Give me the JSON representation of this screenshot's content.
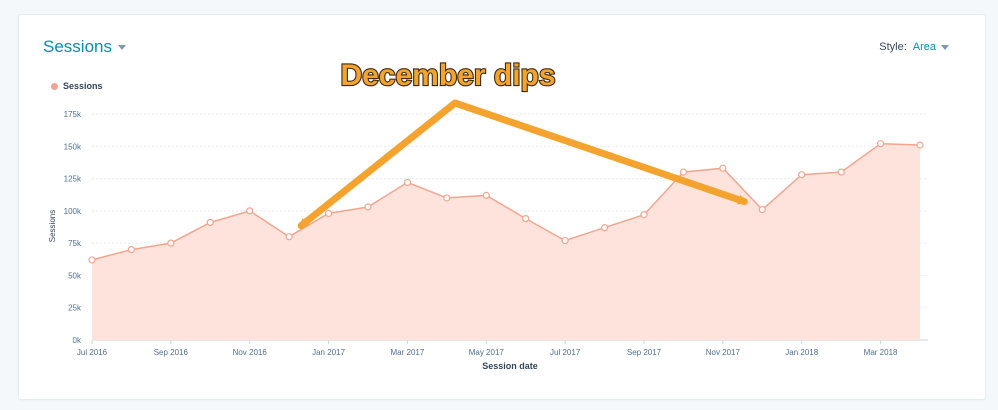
{
  "header": {
    "title": "Sessions",
    "style_label": "Style:",
    "style_value": "Area"
  },
  "annotation": {
    "text": "December dips"
  },
  "colors": {
    "area_fill": "#fde3db",
    "line": "#f2a58e",
    "accent": "#0091ae",
    "arrow": "#f5a32f"
  },
  "chart_data": {
    "type": "area",
    "xlabel": "Session date",
    "ylabel": "Sessions",
    "ylim": [
      0,
      175000
    ],
    "y_ticks": [
      0,
      25000,
      50000,
      75000,
      100000,
      125000,
      150000,
      175000
    ],
    "y_tick_labels": [
      "0k",
      "25k",
      "50k",
      "75k",
      "100k",
      "125k",
      "150k",
      "175k"
    ],
    "x_tick_labels": [
      "Jul 2016",
      "Sep 2016",
      "Nov 2016",
      "Jan 2017",
      "Mar 2017",
      "May 2017",
      "Jul 2017",
      "Sep 2017",
      "Nov 2017",
      "Jan 2018",
      "Mar 2018"
    ],
    "x": [
      "2016-07",
      "2016-08",
      "2016-09",
      "2016-10",
      "2016-11",
      "2016-12",
      "2017-01",
      "2017-02",
      "2017-03",
      "2017-04",
      "2017-05",
      "2017-06",
      "2017-07",
      "2017-08",
      "2017-09",
      "2017-10",
      "2017-11",
      "2017-12",
      "2018-01",
      "2018-02",
      "2018-03",
      "2018-04"
    ],
    "legend_position": "top-left",
    "grid": true,
    "series": [
      {
        "name": "Sessions",
        "values": [
          62000,
          70000,
          75000,
          91000,
          100000,
          80000,
          98000,
          103000,
          122000,
          110000,
          112000,
          94000,
          77000,
          87000,
          97000,
          130000,
          133000,
          101000,
          128000,
          130000,
          152000,
          151000
        ]
      }
    ]
  }
}
